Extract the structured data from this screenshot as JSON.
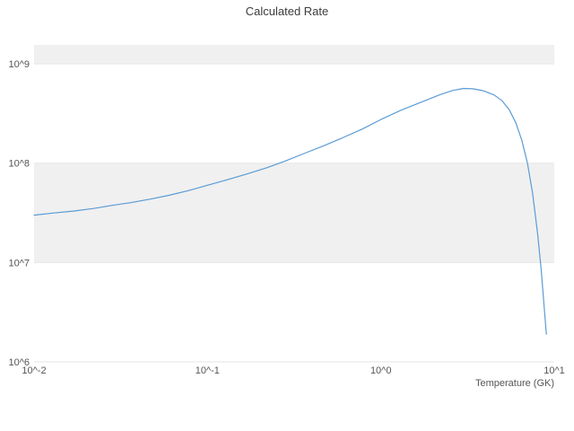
{
  "chart_data": {
    "type": "line",
    "title": "Calculated Rate",
    "xlabel": "Temperature (GK)",
    "ylabel": "",
    "x_scale": "log",
    "y_scale": "log",
    "xlim": [
      0.01,
      10
    ],
    "ylim": [
      1000000.0,
      1550000000.0
    ],
    "grid": true,
    "legend": "none",
    "stripe_color": "#f0f0f0",
    "grid_color": "#e6e6e6",
    "line_color": "#5b9bd5",
    "stripe_bands": [
      [
        10000000.0,
        100000000.0
      ],
      [
        1000000000.0,
        1550000000.0
      ]
    ],
    "x_ticks": [
      {
        "value": 0.01,
        "label": "10^-2"
      },
      {
        "value": 0.1,
        "label": "10^-1"
      },
      {
        "value": 1,
        "label": "10^0"
      },
      {
        "value": 10,
        "label": "10^1"
      }
    ],
    "y_ticks": [
      {
        "value": 1000000.0,
        "label": "10^6"
      },
      {
        "value": 10000000.0,
        "label": "10^7"
      },
      {
        "value": 100000000.0,
        "label": "10^8"
      },
      {
        "value": 1000000000.0,
        "label": "10^9"
      }
    ],
    "series": [
      {
        "name": "calculated-rate",
        "x": [
          0.01,
          0.013,
          0.017,
          0.022,
          0.028,
          0.036,
          0.047,
          0.06,
          0.078,
          0.1,
          0.13,
          0.17,
          0.22,
          0.28,
          0.36,
          0.47,
          0.6,
          0.78,
          1.0,
          1.3,
          1.7,
          2.2,
          2.6,
          3.0,
          3.4,
          3.9,
          4.5,
          5.0,
          5.5,
          6.0,
          6.5,
          7.0,
          7.5,
          8.0,
          8.4,
          8.7,
          9.0
        ],
        "y": [
          30000000.0,
          31500000.0,
          33000000.0,
          35000000.0,
          37500000.0,
          40000000.0,
          43500000.0,
          47500000.0,
          53000000.0,
          60000000.0,
          68000000.0,
          78000000.0,
          90000000.0,
          105000000.0,
          125000000.0,
          150000000.0,
          180000000.0,
          220000000.0,
          275000000.0,
          340000000.0,
          410000000.0,
          490000000.0,
          540000000.0,
          565000000.0,
          560000000.0,
          535000000.0,
          485000000.0,
          425000000.0,
          345000000.0,
          255000000.0,
          170000000.0,
          100000000.0,
          50000000.0,
          20000000.0,
          8500000.0,
          4000000.0,
          1900000.0
        ]
      }
    ]
  }
}
